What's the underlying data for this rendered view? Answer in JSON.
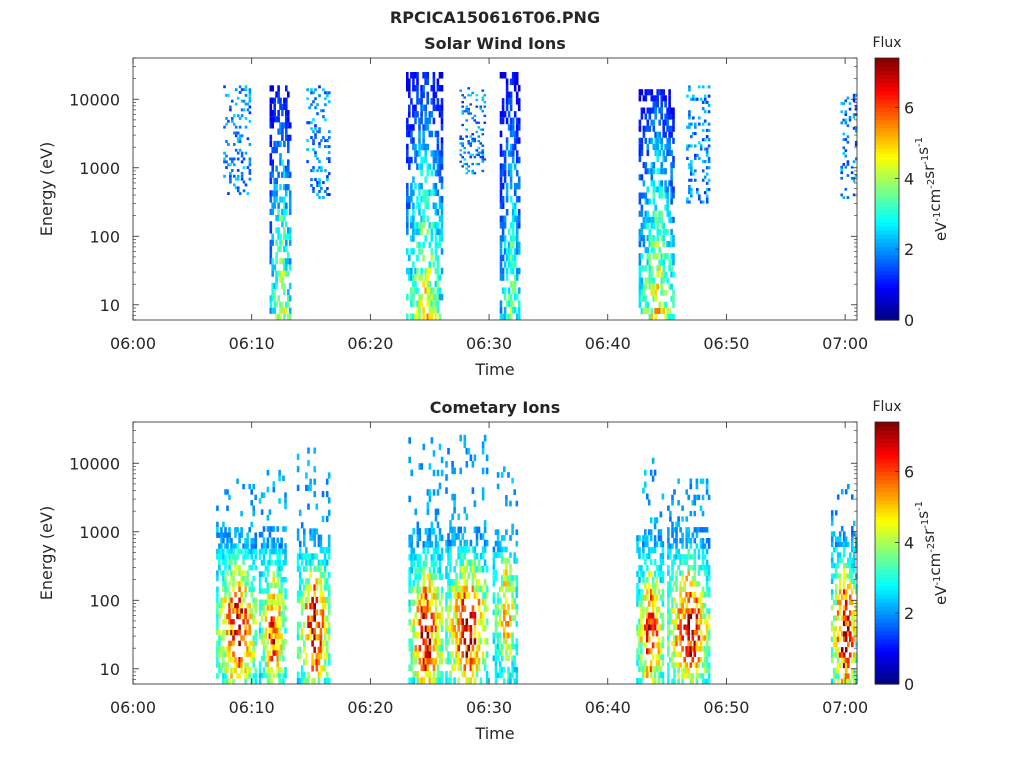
{
  "figure_title": "RPCICA150616T06.PNG",
  "chart_data": [
    {
      "type": "heatmap",
      "title": "Solar Wind Ions",
      "xlabel": "Time",
      "ylabel": "Energy (eV)",
      "x_tick_labels": [
        "06:00",
        "06:10",
        "06:20",
        "06:30",
        "06:40",
        "06:50",
        "07:00"
      ],
      "x_range_minutes": [
        0,
        61
      ],
      "y_scale": "log",
      "y_tick_values": [
        10,
        100,
        1000,
        10000
      ],
      "y_tick_labels": [
        "10",
        "100",
        "1000",
        "10000"
      ],
      "y_range": [
        6,
        40000
      ],
      "colorbar": {
        "title": "Flux",
        "label": "eV-1cm-2sr-1s-1",
        "label_parts": [
          {
            "t": "eV",
            "sup": false
          },
          {
            "t": "-1",
            "sup": true
          },
          {
            "t": "cm",
            "sup": false
          },
          {
            "t": "-2",
            "sup": true
          },
          {
            "t": "sr",
            "sup": false
          },
          {
            "t": "-1",
            "sup": true
          },
          {
            "t": "s",
            "sup": false
          },
          {
            "t": "-1",
            "sup": true
          }
        ],
        "ticks": [
          "0",
          "2",
          "4",
          "6"
        ],
        "range": [
          0,
          7.4
        ],
        "colormap": "jet"
      },
      "bursts": [
        {
          "t_start": 7.6,
          "t_end": 9.9,
          "e_min": 400,
          "e_max": 16000,
          "peak_flux": 1.6,
          "sparse": true
        },
        {
          "t_start": 11.5,
          "t_end": 13.3,
          "e_min": 6,
          "e_max": 16000,
          "peak_flux": 4.8,
          "sparse": false
        },
        {
          "t_start": 14.6,
          "t_end": 16.6,
          "e_min": 350,
          "e_max": 16000,
          "peak_flux": 2.6,
          "sparse": true
        },
        {
          "t_start": 23.0,
          "t_end": 26.1,
          "e_min": 6,
          "e_max": 25000,
          "peak_flux": 5.0,
          "sparse": false
        },
        {
          "t_start": 27.5,
          "t_end": 29.7,
          "e_min": 800,
          "e_max": 15000,
          "peak_flux": 2.3,
          "sparse": true
        },
        {
          "t_start": 30.9,
          "t_end": 32.6,
          "e_min": 6,
          "e_max": 25000,
          "peak_flux": 4.2,
          "sparse": false
        },
        {
          "t_start": 42.6,
          "t_end": 45.6,
          "e_min": 6,
          "e_max": 14000,
          "peak_flux": 5.2,
          "sparse": false
        },
        {
          "t_start": 46.6,
          "t_end": 48.6,
          "e_min": 300,
          "e_max": 16000,
          "peak_flux": 2.5,
          "sparse": true
        },
        {
          "t_start": 59.6,
          "t_end": 61.0,
          "e_min": 350,
          "e_max": 12000,
          "peak_flux": 2.2,
          "sparse": true
        }
      ]
    },
    {
      "type": "heatmap",
      "title": "Cometary Ions",
      "xlabel": "Time",
      "ylabel": "Energy (eV)",
      "x_tick_labels": [
        "06:00",
        "06:10",
        "06:20",
        "06:30",
        "06:40",
        "06:50",
        "07:00"
      ],
      "x_range_minutes": [
        0,
        61
      ],
      "y_scale": "log",
      "y_tick_values": [
        10,
        100,
        1000,
        10000
      ],
      "y_tick_labels": [
        "10",
        "100",
        "1000",
        "10000"
      ],
      "y_range": [
        6,
        40000
      ],
      "colorbar": {
        "title": "Flux",
        "label": "eV-1cm-2sr-1s-1",
        "label_parts": [
          {
            "t": "eV",
            "sup": false
          },
          {
            "t": "-1",
            "sup": true
          },
          {
            "t": "cm",
            "sup": false
          },
          {
            "t": "-2",
            "sup": true
          },
          {
            "t": "sr",
            "sup": false
          },
          {
            "t": "-1",
            "sup": true
          },
          {
            "t": "s",
            "sup": false
          },
          {
            "t": "-1",
            "sup": true
          }
        ],
        "ticks": [
          "0",
          "2",
          "4",
          "6"
        ],
        "range": [
          0,
          7.4
        ],
        "colormap": "jet"
      },
      "bursts": [
        {
          "t_start": 7.0,
          "t_end": 10.4,
          "e_min": 6,
          "e_max": 6000,
          "peak_flux": 7.2,
          "peak_energy": 35,
          "sparse": false
        },
        {
          "t_start": 10.6,
          "t_end": 12.9,
          "e_min": 6,
          "e_max": 8000,
          "peak_flux": 6.3,
          "peak_energy": 30,
          "sparse": false
        },
        {
          "t_start": 13.8,
          "t_end": 16.6,
          "e_min": 6,
          "e_max": 17000,
          "peak_flux": 7.0,
          "peak_energy": 35,
          "sparse": false
        },
        {
          "t_start": 23.2,
          "t_end": 26.1,
          "e_min": 6,
          "e_max": 24000,
          "peak_flux": 7.2,
          "peak_energy": 30,
          "sparse": false
        },
        {
          "t_start": 26.3,
          "t_end": 29.9,
          "e_min": 6,
          "e_max": 26000,
          "peak_flux": 7.3,
          "peak_energy": 35,
          "sparse": false
        },
        {
          "t_start": 30.3,
          "t_end": 32.4,
          "e_min": 6,
          "e_max": 9000,
          "peak_flux": 5.6,
          "peak_energy": 60,
          "sparse": false
        },
        {
          "t_start": 42.4,
          "t_end": 44.7,
          "e_min": 6,
          "e_max": 12000,
          "peak_flux": 6.8,
          "peak_energy": 30,
          "sparse": false
        },
        {
          "t_start": 45.0,
          "t_end": 48.6,
          "e_min": 6,
          "e_max": 6000,
          "peak_flux": 7.2,
          "peak_energy": 35,
          "sparse": false
        },
        {
          "t_start": 58.8,
          "t_end": 61.0,
          "e_min": 6,
          "e_max": 5000,
          "peak_flux": 7.4,
          "peak_energy": 30,
          "sparse": false
        }
      ]
    }
  ]
}
